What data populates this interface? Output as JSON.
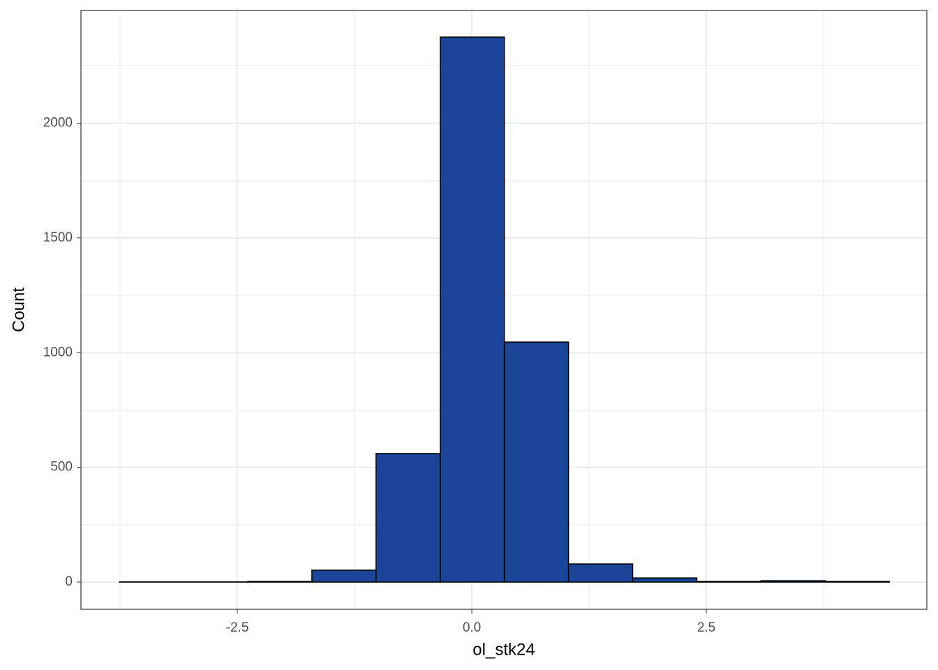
{
  "chart_data": {
    "type": "histogram",
    "x_label": "ol_stk24",
    "y_label": "Count",
    "bins": [
      -3.757,
      -3.073,
      -2.389,
      -1.705,
      -1.021,
      -0.337,
      0.347,
      1.031,
      1.715,
      2.399,
      3.083,
      3.767,
      4.451
    ],
    "counts": [
      1,
      1,
      3,
      52,
      560,
      2375,
      1046,
      79,
      18,
      3,
      6,
      3
    ],
    "color": "#1a4599",
    "edge_color": "#000000",
    "xlim": [
      -4.167,
      4.851
    ],
    "ylim": [
      -118.5,
      2491
    ],
    "xticks": [
      -2.5,
      {
        "value": 0,
        "label": "0.0"
      },
      2.5
    ],
    "yticks": [
      0,
      500,
      1000,
      1500,
      2000
    ],
    "x_minor_grid": [
      -3.75,
      -1.25,
      1.25,
      3.75
    ],
    "y_minor_grid": [
      250,
      750,
      1250,
      1750,
      2250
    ],
    "grid": true
  }
}
